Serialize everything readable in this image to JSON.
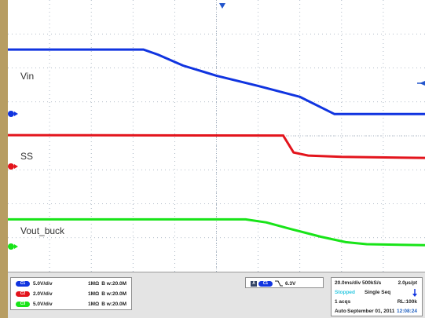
{
  "colors": {
    "ch1": "#1034e0",
    "ch2": "#e3141c",
    "ch3": "#18e418",
    "grid": "#9aa8b8",
    "trigger_marker": "#2255cc",
    "stopped": "#2ec8e0"
  },
  "traces": {
    "vin_label": "Vin",
    "ss_label": "SS",
    "vout_label": "Vout_buck"
  },
  "channels": [
    {
      "badge": "C1",
      "scale": "5.0V/div",
      "impedance": "1MΩ",
      "bandwidth": "B w:20.0M",
      "color": "#1034e0"
    },
    {
      "badge": "C2",
      "scale": "2.0V/div",
      "impedance": "1MΩ",
      "bandwidth": "B w:20.0M",
      "color": "#e3141c"
    },
    {
      "badge": "C3",
      "scale": "5.0V/div",
      "impedance": "1MΩ",
      "bandwidth": "B w:20.0M",
      "color": "#18e418"
    }
  ],
  "trigger": {
    "source": "C1",
    "slope_icon": "falling-edge",
    "level": "6.3V"
  },
  "acquisition": {
    "timebase": "20.0ms/div  500kS/s",
    "sample_interval": "2.0µs/pt",
    "state": "Stopped",
    "mode": "Single Seq",
    "acqs": "1 acqs",
    "record_length": "RL:100k",
    "trigger_mode": "Auto",
    "date": "September 01, 2011",
    "time": "12:08:24"
  }
}
